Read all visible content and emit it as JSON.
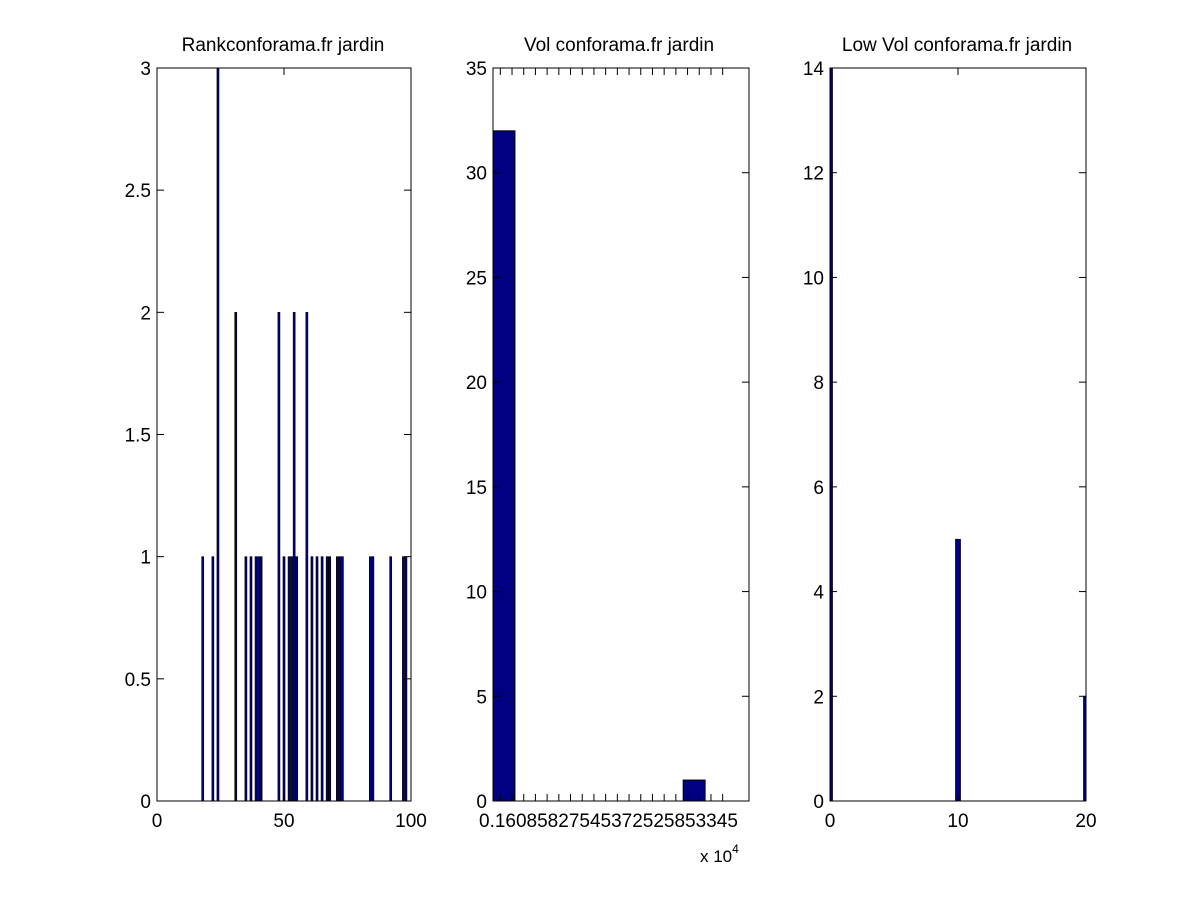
{
  "figure": {
    "background": "#ffffff",
    "bar_color": "#000080",
    "axis_color": "#000000"
  },
  "chart_data": [
    {
      "type": "bar",
      "title": "Rankconforama.fr jardin",
      "xlabel": "",
      "ylabel": "",
      "xlim": [
        0,
        100
      ],
      "ylim": [
        0,
        3
      ],
      "xticks": [
        0,
        50,
        100
      ],
      "xtick_labels": [
        "0",
        "50",
        "100"
      ],
      "yticks": [
        0,
        0.5,
        1,
        1.5,
        2,
        2.5,
        3
      ],
      "ytick_labels": [
        "0",
        "0.5",
        "1",
        "1.5",
        "2",
        "2.5",
        "3"
      ],
      "bar_width": 0.8,
      "x": [
        18,
        22,
        24,
        31,
        35,
        37,
        39,
        40,
        41,
        48,
        50,
        52,
        53,
        54,
        55,
        59,
        61,
        63,
        65,
        67,
        68,
        71,
        72,
        73,
        84,
        85,
        92,
        97,
        98
      ],
      "values": [
        1,
        1,
        3,
        2,
        1,
        1,
        1,
        1,
        1,
        2,
        1,
        1,
        1,
        2,
        1,
        2,
        1,
        1,
        1,
        1,
        1,
        1,
        1,
        1,
        1,
        1,
        1,
        1,
        1
      ],
      "grid": false
    },
    {
      "type": "bar",
      "title": "Vol conforama.fr jardin",
      "xlabel": "",
      "ylabel": "",
      "xlim": [
        0,
        35
      ],
      "ylim": [
        0,
        35
      ],
      "xticks": [
        1,
        2.6,
        4.2,
        5.8,
        7.4,
        9,
        10.6,
        12.2,
        13.8,
        15.4,
        17,
        18.6,
        20.2,
        21.8,
        23.4,
        25,
        26.6,
        28.2,
        29.8,
        31.4
      ],
      "xtick_labels": [
        "0.1",
        "6",
        "0",
        "5",
        "6",
        "2",
        "7",
        "5",
        "4",
        "5",
        "9",
        "2",
        "5",
        "2",
        "5",
        "8",
        "5",
        "3",
        "4",
        "5"
      ],
      "xtick_label_text": "0.16085827545372525853345",
      "yticks": [
        0,
        5,
        10,
        15,
        20,
        25,
        30,
        35
      ],
      "ytick_labels": [
        "0",
        "5",
        "10",
        "15",
        "20",
        "25",
        "30",
        "35"
      ],
      "exponent_label": "x 10",
      "exponent_power": "4",
      "bins": [
        {
          "x0": 0,
          "x1": 3,
          "value": 32
        },
        {
          "x0": 26,
          "x1": 29,
          "value": 1
        }
      ],
      "grid": false
    },
    {
      "type": "bar",
      "title": "Low Vol conforama.fr jardin",
      "xlabel": "",
      "ylabel": "",
      "xlim": [
        0,
        20
      ],
      "ylim": [
        0,
        14
      ],
      "xticks": [
        0,
        10,
        20
      ],
      "xtick_labels": [
        "0",
        "10",
        "20"
      ],
      "yticks": [
        0,
        2,
        4,
        6,
        8,
        10,
        12,
        14
      ],
      "ytick_labels": [
        "0",
        "2",
        "4",
        "6",
        "8",
        "10",
        "12",
        "14"
      ],
      "bar_width": 0.4,
      "x": [
        0,
        10,
        20
      ],
      "values": [
        14,
        5,
        2
      ],
      "grid": false
    }
  ]
}
